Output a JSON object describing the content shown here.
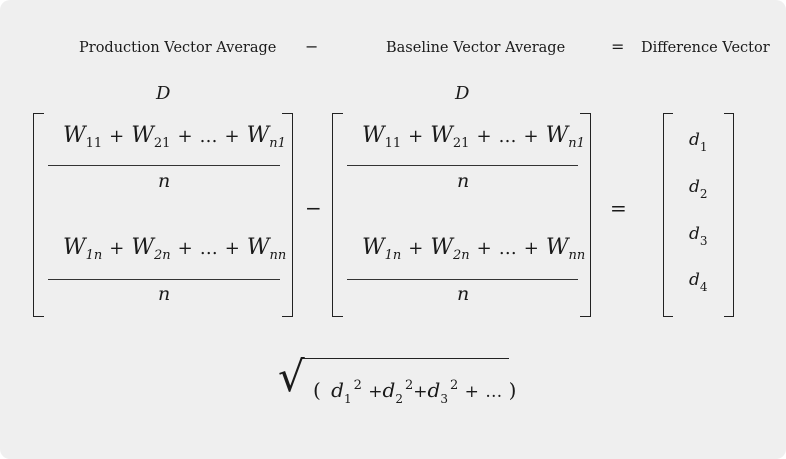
{
  "headers": {
    "production": "Production Vector Average",
    "minus": "−",
    "baseline": "Baseline Vector Average",
    "equals": "=",
    "difference": "Difference Vector"
  },
  "matrix_label_left": "D",
  "matrix_label_right": "D",
  "row1": {
    "terms": [
      {
        "base": "W",
        "sub": "11"
      },
      {
        "base": "W",
        "sub": "21"
      },
      {
        "base": "W",
        "sub": "n1"
      }
    ],
    "plus": "+",
    "ellipsis": "…",
    "denominator": "n"
  },
  "row2": {
    "terms": [
      {
        "base": "W",
        "sub": "1n"
      },
      {
        "base": "W",
        "sub": "2n"
      },
      {
        "base": "W",
        "sub": "nn"
      }
    ],
    "plus": "+",
    "ellipsis": "…",
    "denominator": "n"
  },
  "operator_minus": "−",
  "operator_equals": "=",
  "difference_vector": [
    {
      "base": "d",
      "sub": "1"
    },
    {
      "base": "d",
      "sub": "2"
    },
    {
      "base": "d",
      "sub": "3"
    },
    {
      "base": "d",
      "sub": "4"
    }
  ],
  "norm": {
    "radical": "√",
    "open_paren": "(",
    "close_paren": ")",
    "exponent": "2",
    "terms": [
      {
        "base": "d",
        "sub": "1"
      },
      {
        "base": "d",
        "sub": "2"
      },
      {
        "base": "d",
        "sub": "3"
      }
    ],
    "plus": "+",
    "ellipsis": "…"
  }
}
